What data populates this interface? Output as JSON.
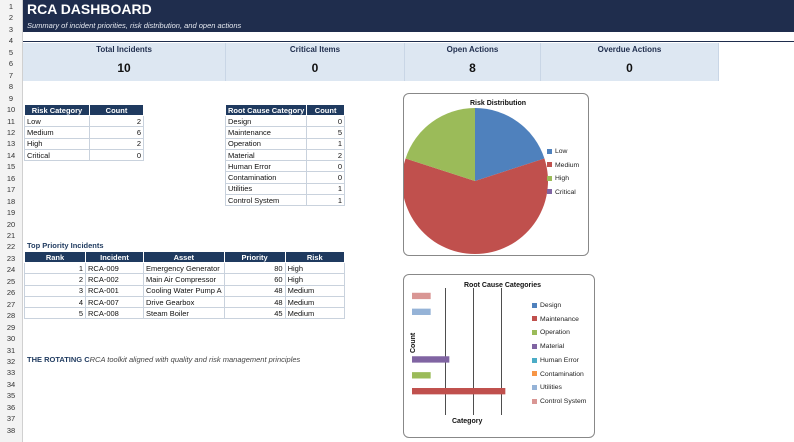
{
  "header": {
    "title": "RCA DASHBOARD",
    "subtitle": "Summary of incident priorities, risk distribution, and open actions"
  },
  "row_numbers": [
    "1",
    "2",
    "3",
    "4",
    "5",
    "6",
    "7",
    "8",
    "9",
    "10",
    "11",
    "12",
    "13",
    "14",
    "15",
    "16",
    "17",
    "18",
    "19",
    "20",
    "21",
    "22",
    "23",
    "24",
    "25",
    "26",
    "27",
    "28",
    "29",
    "30",
    "31",
    "32",
    "33",
    "34",
    "35",
    "36",
    "37",
    "38"
  ],
  "kpis": [
    {
      "label": "Total Incidents",
      "value": "10"
    },
    {
      "label": "Critical Items",
      "value": "0"
    },
    {
      "label": "Open Actions",
      "value": "8"
    },
    {
      "label": "Overdue Actions",
      "value": "0"
    }
  ],
  "risk_table": {
    "headers": [
      "Risk Category",
      "Count"
    ],
    "rows": [
      [
        "Low",
        "2"
      ],
      [
        "Medium",
        "6"
      ],
      [
        "High",
        "2"
      ],
      [
        "Critical",
        "0"
      ]
    ]
  },
  "root_table": {
    "headers": [
      "Root Cause Category",
      "Count"
    ],
    "rows": [
      [
        "Design",
        "0"
      ],
      [
        "Maintenance",
        "5"
      ],
      [
        "Operation",
        "1"
      ],
      [
        "Material",
        "2"
      ],
      [
        "Human Error",
        "0"
      ],
      [
        "Contamination",
        "0"
      ],
      [
        "Utilities",
        "1"
      ],
      [
        "Control System",
        "1"
      ]
    ]
  },
  "priority": {
    "section_title": "Top Priority Incidents",
    "headers": [
      "Rank",
      "Incident",
      "Asset",
      "Priority",
      "Risk"
    ],
    "rows": [
      [
        "1",
        "RCA-009",
        "Emergency Generator",
        "80",
        "High"
      ],
      [
        "2",
        "RCA-002",
        "Main Air Compressor",
        "60",
        "High"
      ],
      [
        "3",
        "RCA-001",
        "Cooling Water Pump A",
        "48",
        "Medium"
      ],
      [
        "4",
        "RCA-007",
        "Drive Gearbox",
        "48",
        "Medium"
      ],
      [
        "5",
        "RCA-008",
        "Steam Boiler",
        "45",
        "Medium"
      ]
    ]
  },
  "footer": {
    "bold": "THE ROTATING C",
    "italic": "RCA toolkit aligned with quality and risk management principles"
  },
  "chart_data": [
    {
      "type": "pie",
      "title": "Risk Distribution",
      "categories": [
        "Low",
        "Medium",
        "High",
        "Critical"
      ],
      "values": [
        2,
        6,
        2,
        0
      ],
      "colors": [
        "#4f81bd",
        "#c0504d",
        "#9bbb59",
        "#8064a2"
      ],
      "legend": "right"
    },
    {
      "type": "bar",
      "orientation": "horizontal",
      "title": "Root Cause Categories",
      "categories": [
        "Design",
        "Maintenance",
        "Operation",
        "Material",
        "Human Error",
        "Contamination",
        "Utilities",
        "Control System"
      ],
      "values": [
        0,
        5,
        1,
        2,
        0,
        0,
        1,
        1
      ],
      "colors": [
        "#4f81bd",
        "#c0504d",
        "#9bbb59",
        "#8064a2",
        "#4bacc6",
        "#f79646",
        "#95b3d7",
        "#d99694"
      ],
      "xlabel": "Category",
      "ylabel": "Count",
      "legend": "right"
    }
  ]
}
